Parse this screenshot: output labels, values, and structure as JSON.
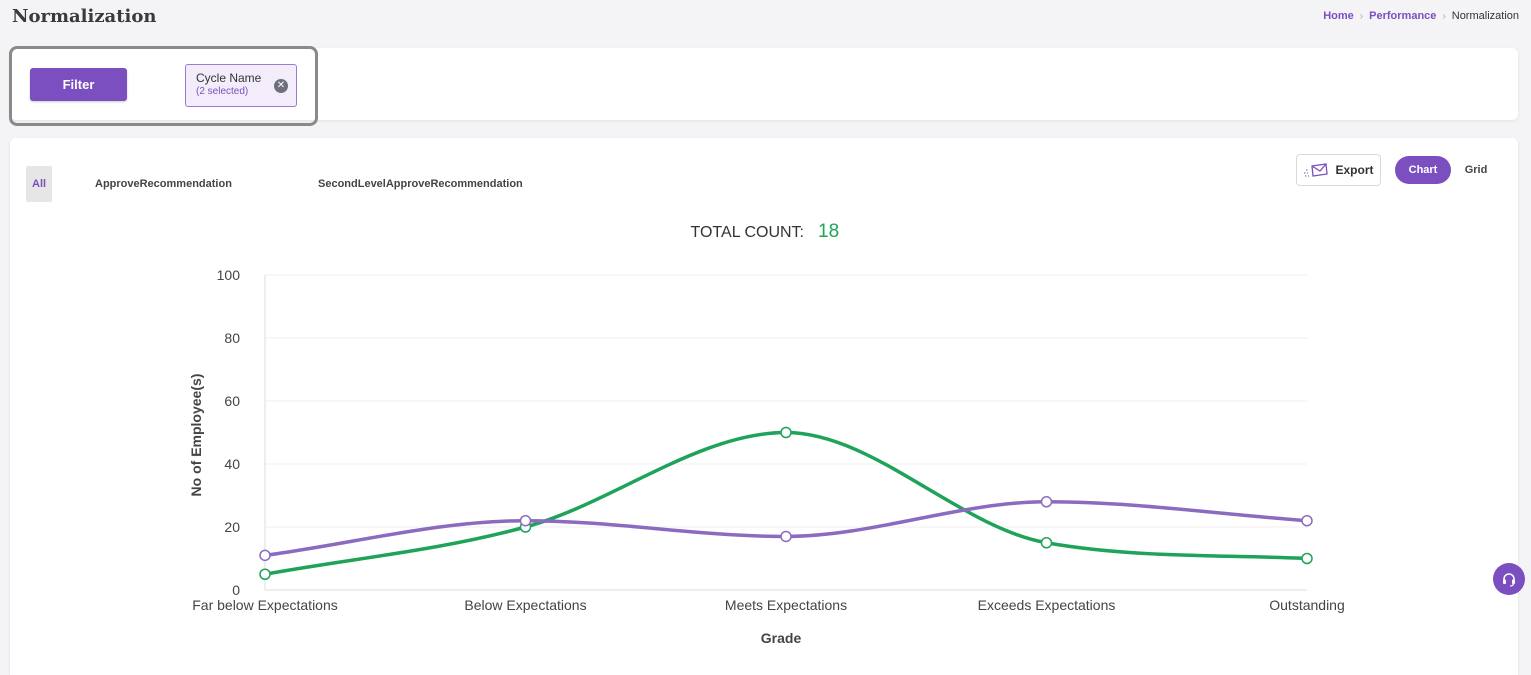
{
  "page": {
    "title": "Normalization",
    "breadcrumb": [
      "Home",
      "Performance",
      "Normalization"
    ]
  },
  "filter": {
    "button_label": "Filter",
    "chip_title": "Cycle Name",
    "chip_subtitle": "(2 selected)"
  },
  "tabs": [
    "All",
    "ApproveRecommendation",
    "SecondLevelApproveRecommendation"
  ],
  "toolbar": {
    "export_label": "Export",
    "chart_label": "Chart",
    "grid_label": "Grid"
  },
  "total": {
    "label": "TOTAL COUNT:",
    "value": "18"
  },
  "chart_data": {
    "type": "line",
    "categories": [
      "Far below Expectations",
      "Below Expectations",
      "Meets Expectations",
      "Exceeds Expectations",
      "Outstanding"
    ],
    "series": [
      {
        "color": "#1fa35a",
        "values": [
          5,
          20,
          50,
          15,
          10
        ]
      },
      {
        "color": "#8b6bbf",
        "values": [
          11,
          22,
          17,
          28,
          22
        ]
      }
    ],
    "ylim": [
      0,
      100
    ],
    "yticks": [
      0,
      20,
      40,
      60,
      80,
      100
    ],
    "xlabel": "Grade",
    "ylabel": "No of Employee(s)",
    "grid": true
  },
  "colors": {
    "accent": "#7b4fbf",
    "total_value": "#1fa35a"
  },
  "icons": {
    "export": "envelope-icon",
    "close": "close-circle-icon",
    "help": "headset-icon"
  }
}
